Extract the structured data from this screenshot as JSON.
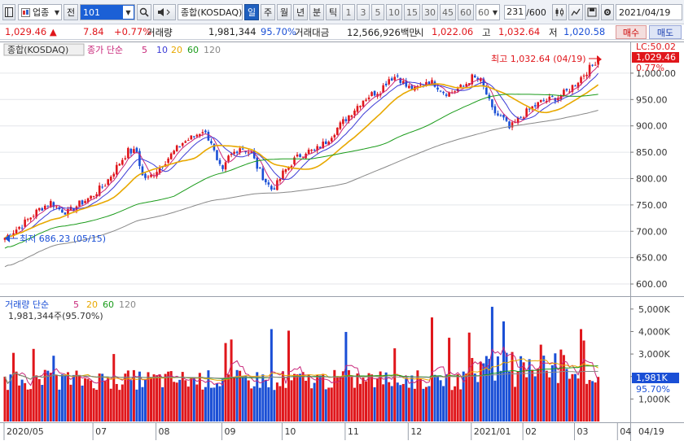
{
  "toolbar": {
    "market_select": "업종",
    "jeon_label": "전",
    "code_value": "101",
    "index_name": "종합(KOSDAQ)",
    "periods": [
      "일",
      "주",
      "월",
      "년",
      "분",
      "틱"
    ],
    "active_period": "일",
    "intervals": [
      "1",
      "3",
      "5",
      "10",
      "15",
      "30",
      "45",
      "60"
    ],
    "interval_select": "60",
    "count_value": "231",
    "count_total": "/600",
    "date_value": "2021/04/19"
  },
  "quote": {
    "price": "1,029.46",
    "arrow": "▲",
    "change": "7.84",
    "change_pct": "+0.77%",
    "volume_label": "거래량",
    "volume": "1,981,344",
    "volume_ratio": "95.70%",
    "amount_label": "거래대금",
    "amount": "12,566,926백만",
    "open_label": "시",
    "open": "1,022.06",
    "high_label": "고",
    "high": "1,032.64",
    "low_label": "저",
    "low": "1,020.58",
    "buy_label": "매수",
    "sell_label": "매도"
  },
  "price_panel": {
    "title": "종합(KOSDAQ)",
    "legend_main": "종가 단순",
    "legend_periods": [
      "5",
      "10",
      "20",
      "60",
      "120"
    ],
    "legend_colors": [
      "#c8277a",
      "#3b3bd6",
      "#e8a800",
      "#1a9b1a",
      "#888888"
    ],
    "high_annotation": "최고 1,032.64 (04/19)",
    "low_annotation": "최저 686.23 (05/15)",
    "lc_label": "LC:50.02",
    "last_price_badge": "1,029.46",
    "pct_label": "0.77%",
    "y_ticks": [
      "1,000.00",
      "950.00",
      "900.00",
      "850.00",
      "800.00",
      "750.00",
      "700.00",
      "650.00",
      "600.00"
    ]
  },
  "volume_panel": {
    "legend_main": "거래량 단순",
    "legend_periods": [
      "5",
      "20",
      "60",
      "120"
    ],
    "legend_colors": [
      "#c8277a",
      "#e8a800",
      "#1a9b1a",
      "#888888"
    ],
    "current_text": "1,981,344주(95.70%)",
    "y_ticks": [
      "5,000K",
      "4,000K",
      "3,000K",
      "2,000K",
      "1,000K"
    ],
    "badge": "1,981K",
    "badge_pct": "95.70%"
  },
  "x_axis": {
    "labels": [
      "2020/05",
      "07",
      "08",
      "09",
      "10",
      "11",
      "12",
      "2021/01",
      "02",
      "03",
      "04"
    ],
    "right_label": "04/19"
  },
  "chart_data": {
    "type": "candlestick",
    "series_anchor_close": [
      [
        0,
        688
      ],
      [
        6,
        712
      ],
      [
        12,
        742
      ],
      [
        16,
        755
      ],
      [
        19,
        742
      ],
      [
        22,
        736
      ],
      [
        26,
        752
      ],
      [
        30,
        765
      ],
      [
        35,
        790
      ],
      [
        40,
        830
      ],
      [
        43,
        852
      ],
      [
        46,
        850
      ],
      [
        48,
        805
      ],
      [
        50,
        800
      ],
      [
        54,
        822
      ],
      [
        58,
        845
      ],
      [
        62,
        868
      ],
      [
        66,
        880
      ],
      [
        69,
        892
      ],
      [
        72,
        870
      ],
      [
        74,
        830
      ],
      [
        76,
        812
      ],
      [
        78,
        840
      ],
      [
        82,
        860
      ],
      [
        86,
        848
      ],
      [
        88,
        822
      ],
      [
        91,
        795
      ],
      [
        93,
        780
      ],
      [
        95,
        790
      ],
      [
        97,
        810
      ],
      [
        101,
        836
      ],
      [
        105,
        852
      ],
      [
        108,
        852
      ],
      [
        112,
        870
      ],
      [
        116,
        896
      ],
      [
        120,
        920
      ],
      [
        125,
        950
      ],
      [
        128,
        960
      ],
      [
        131,
        968
      ],
      [
        134,
        990
      ],
      [
        137,
        995
      ],
      [
        140,
        975
      ],
      [
        143,
        968
      ],
      [
        147,
        985
      ],
      [
        150,
        980
      ],
      [
        153,
        965
      ],
      [
        155,
        962
      ],
      [
        158,
        970
      ],
      [
        160,
        975
      ],
      [
        163,
        992
      ],
      [
        166,
        985
      ],
      [
        168,
        960
      ],
      [
        170,
        930
      ],
      [
        172,
        920
      ],
      [
        174,
        912
      ],
      [
        176,
        895
      ],
      [
        178,
        905
      ],
      [
        181,
        922
      ],
      [
        184,
        935
      ],
      [
        187,
        945
      ],
      [
        190,
        950
      ],
      [
        193,
        955
      ],
      [
        196,
        965
      ],
      [
        199,
        980
      ],
      [
        202,
        998
      ],
      [
        205,
        1015
      ],
      [
        207,
        1029.46
      ]
    ],
    "high": {
      "value": 1032.64,
      "date": "04/19"
    },
    "low": {
      "value": 686.23,
      "date": "05/15"
    },
    "last_close": 1029.46,
    "y_range": [
      580,
      1040
    ],
    "volume_range_k": [
      0,
      5500
    ],
    "last_volume_k": 1981,
    "bars": 208
  }
}
